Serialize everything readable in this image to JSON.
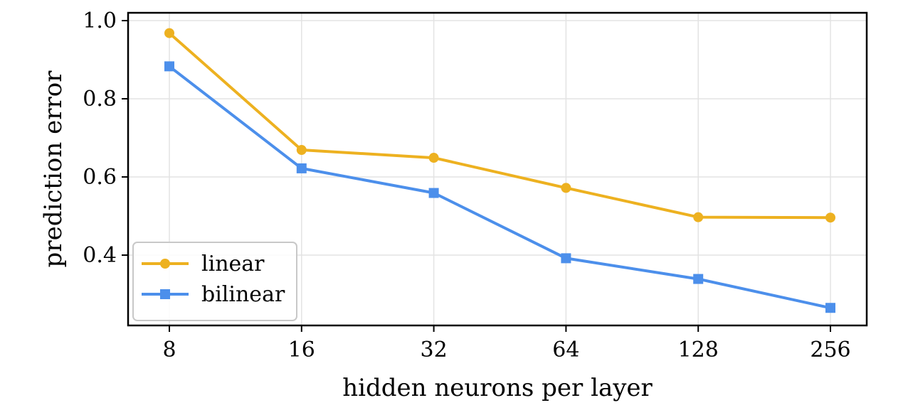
{
  "chart_data": {
    "type": "line",
    "title": "",
    "xlabel": "hidden neurons per layer",
    "ylabel": "prediction error",
    "x_scale": "log2",
    "categories": [
      "8",
      "16",
      "32",
      "64",
      "128",
      "256"
    ],
    "x": [
      8,
      16,
      32,
      64,
      128,
      256
    ],
    "ylim": [
      0.22,
      1.02
    ],
    "yticks": [
      0.4,
      0.6,
      0.8,
      1.0
    ],
    "ytick_labels": [
      "0.4",
      "0.6",
      "0.8",
      "1.0"
    ],
    "grid": true,
    "legend_position": "bottom-left",
    "series": [
      {
        "name": "linear",
        "color": "#EDB120",
        "marker": "circle",
        "values": [
          0.968,
          0.669,
          0.649,
          0.572,
          0.497,
          0.496
        ]
      },
      {
        "name": "bilinear",
        "color": "#4C8FEB",
        "marker": "square",
        "values": [
          0.883,
          0.622,
          0.559,
          0.392,
          0.339,
          0.265
        ]
      }
    ]
  }
}
